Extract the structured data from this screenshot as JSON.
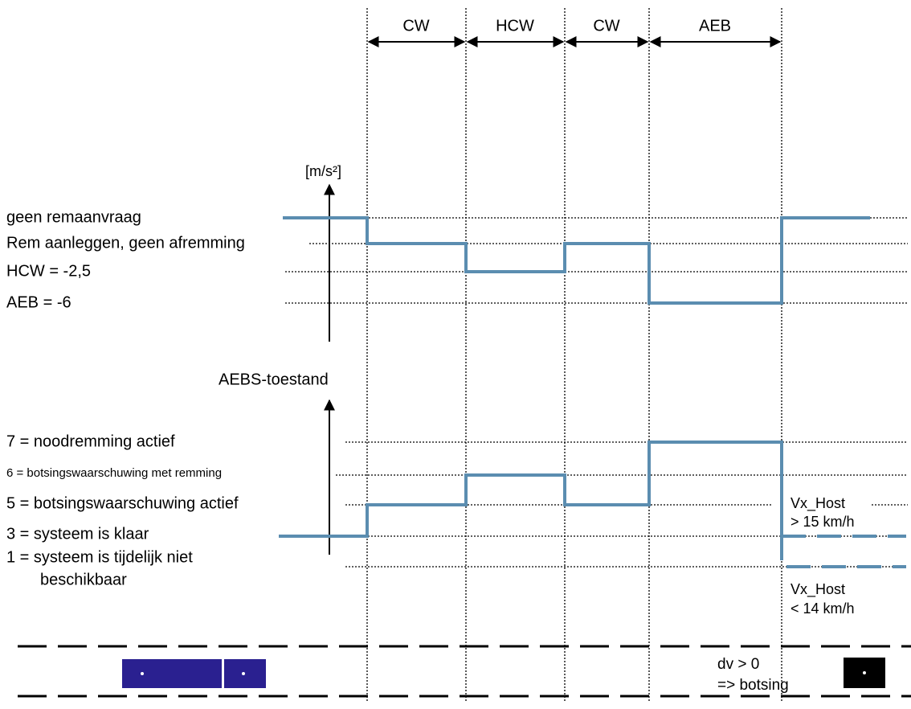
{
  "phases": [
    "CW",
    "HCW",
    "CW",
    "AEB"
  ],
  "deceleration": {
    "unit": "[m/s²]",
    "levels": [
      "geen remaanvraag",
      "Rem aanleggen, geen afremming",
      "HCW = -2,5",
      "AEB = -6"
    ]
  },
  "state": {
    "title": "AEBS-toestand",
    "levels": [
      "7 = noodremming actief",
      "6 = botsingswaarschuwing met remming",
      "5 = botsingswaarschuwing actief",
      "3 = systeem is klaar",
      "1 = systeem is tijdelijk niet",
      "beschikbaar"
    ]
  },
  "speed_notes": {
    "high": [
      "Vx_Host",
      "> 15 km/h"
    ],
    "low": [
      "Vx_Host",
      "< 14 km/h"
    ]
  },
  "collision": [
    "dv > 0",
    "=> botsing"
  ]
}
